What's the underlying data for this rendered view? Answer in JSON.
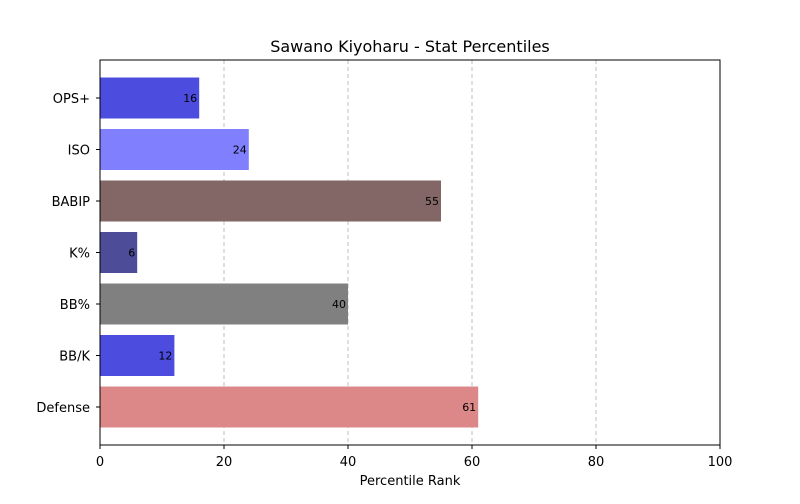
{
  "chart_data": {
    "type": "bar",
    "orientation": "horizontal",
    "title": "Sawano Kiyoharu - Stat Percentiles",
    "xlabel": "Percentile Rank",
    "ylabel": "",
    "xlim": [
      0,
      100
    ],
    "xticks": [
      0,
      20,
      40,
      60,
      80,
      100
    ],
    "grid": "x-dashed",
    "categories": [
      "OPS+",
      "ISO",
      "BABIP",
      "K%",
      "BB%",
      "BB/K",
      "Defense"
    ],
    "values": [
      16,
      24,
      55,
      6,
      40,
      12,
      61
    ],
    "colors": [
      "#4c4cdf",
      "#8080ff",
      "#836666",
      "#4c4c99",
      "#808080",
      "#4c4cdf",
      "#dd8888"
    ]
  }
}
